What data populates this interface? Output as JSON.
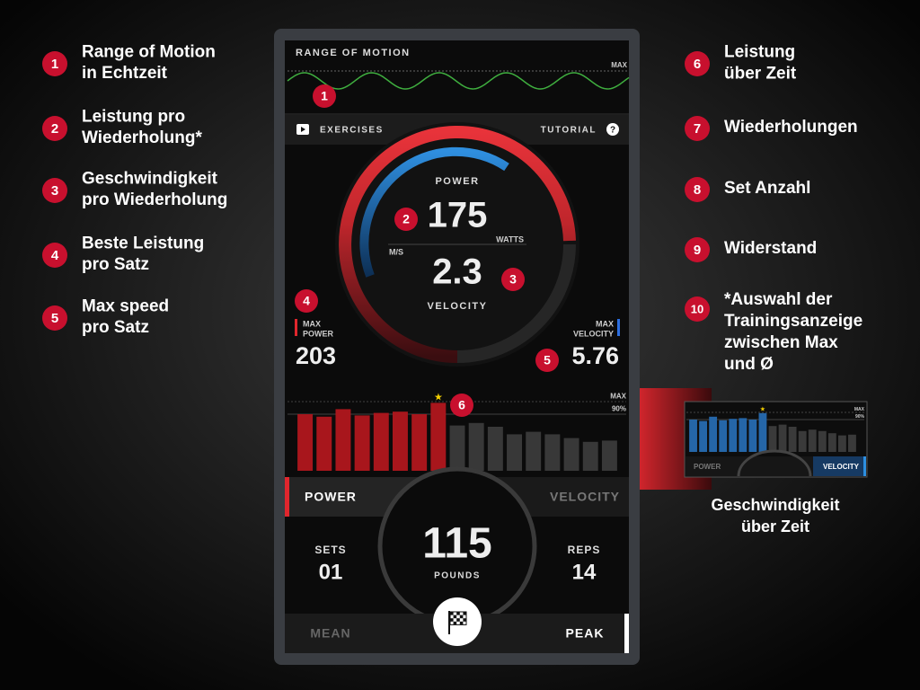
{
  "annotations_left": [
    {
      "number": "1",
      "lines": [
        "Range of Motion",
        "in Echtzeit"
      ]
    },
    {
      "number": "2",
      "lines": [
        "Leistung pro",
        "Wiederholung*"
      ]
    },
    {
      "number": "3",
      "lines": [
        "Geschwindigkeit",
        "pro Wiederholung"
      ]
    },
    {
      "number": "4",
      "lines": [
        "Beste Leistung",
        "pro Satz"
      ]
    },
    {
      "number": "5",
      "lines": [
        "Max speed",
        "pro Satz"
      ]
    }
  ],
  "annotations_right": [
    {
      "number": "6",
      "lines": [
        "Leistung",
        "über Zeit"
      ]
    },
    {
      "number": "7",
      "lines": [
        "Wiederholungen"
      ]
    },
    {
      "number": "8",
      "lines": [
        "Set Anzahl"
      ]
    },
    {
      "number": "9",
      "lines": [
        "Widerstand"
      ]
    },
    {
      "number": "10",
      "lines": [
        "*Auswahl der",
        "Trainingsanzeige",
        "zwischen Max",
        "und Ø"
      ]
    }
  ],
  "screen": {
    "rom_title": "RANGE OF MOTION",
    "rom_max": "MAX",
    "exercises": "EXERCISES",
    "tutorial": "TUTORIAL",
    "help": "?",
    "power_label": "POWER",
    "power_value": 175,
    "power_unit": "WATTS",
    "velocity_unit": "M/S",
    "velocity_value": 2.3,
    "velocity_label": "VELOCITY",
    "max_power_label": [
      "MAX",
      "POWER"
    ],
    "max_power_value": 203,
    "max_velocity_label": [
      "MAX",
      "VELOCITY"
    ],
    "max_velocity_value": 5.76,
    "badges": [
      "1",
      "2",
      "3",
      "4",
      "5",
      "6"
    ],
    "history_chart": {
      "ylim": [
        45,
        100
      ],
      "reference_lines": [
        {
          "value": 100,
          "label": "MAX"
        },
        {
          "value": 90,
          "label": "90%"
        }
      ],
      "series": [
        {
          "color": "#a8161c",
          "values": [
            90,
            88,
            94,
            89,
            91,
            92,
            90,
            99
          ]
        },
        {
          "color": "#383838",
          "values": [
            81,
            83,
            80,
            74,
            76,
            74,
            71,
            68,
            69
          ]
        }
      ]
    },
    "tab_power": "POWER",
    "tab_velocity": "VELOCITY",
    "sets_label": "SETS",
    "sets_value": "01",
    "weight_value": 115,
    "weight_unit": "POUNDS",
    "reps_label": "REPS",
    "reps_value": 14,
    "mean": "MEAN",
    "peak": "PEAK"
  },
  "inset": {
    "colors": [
      "#2566a8",
      "#3a3a3a"
    ],
    "tab_power": "POWER",
    "tab_velocity": "VELOCITY",
    "caption": [
      "Geschwindigkeit",
      "über Zeit"
    ]
  }
}
